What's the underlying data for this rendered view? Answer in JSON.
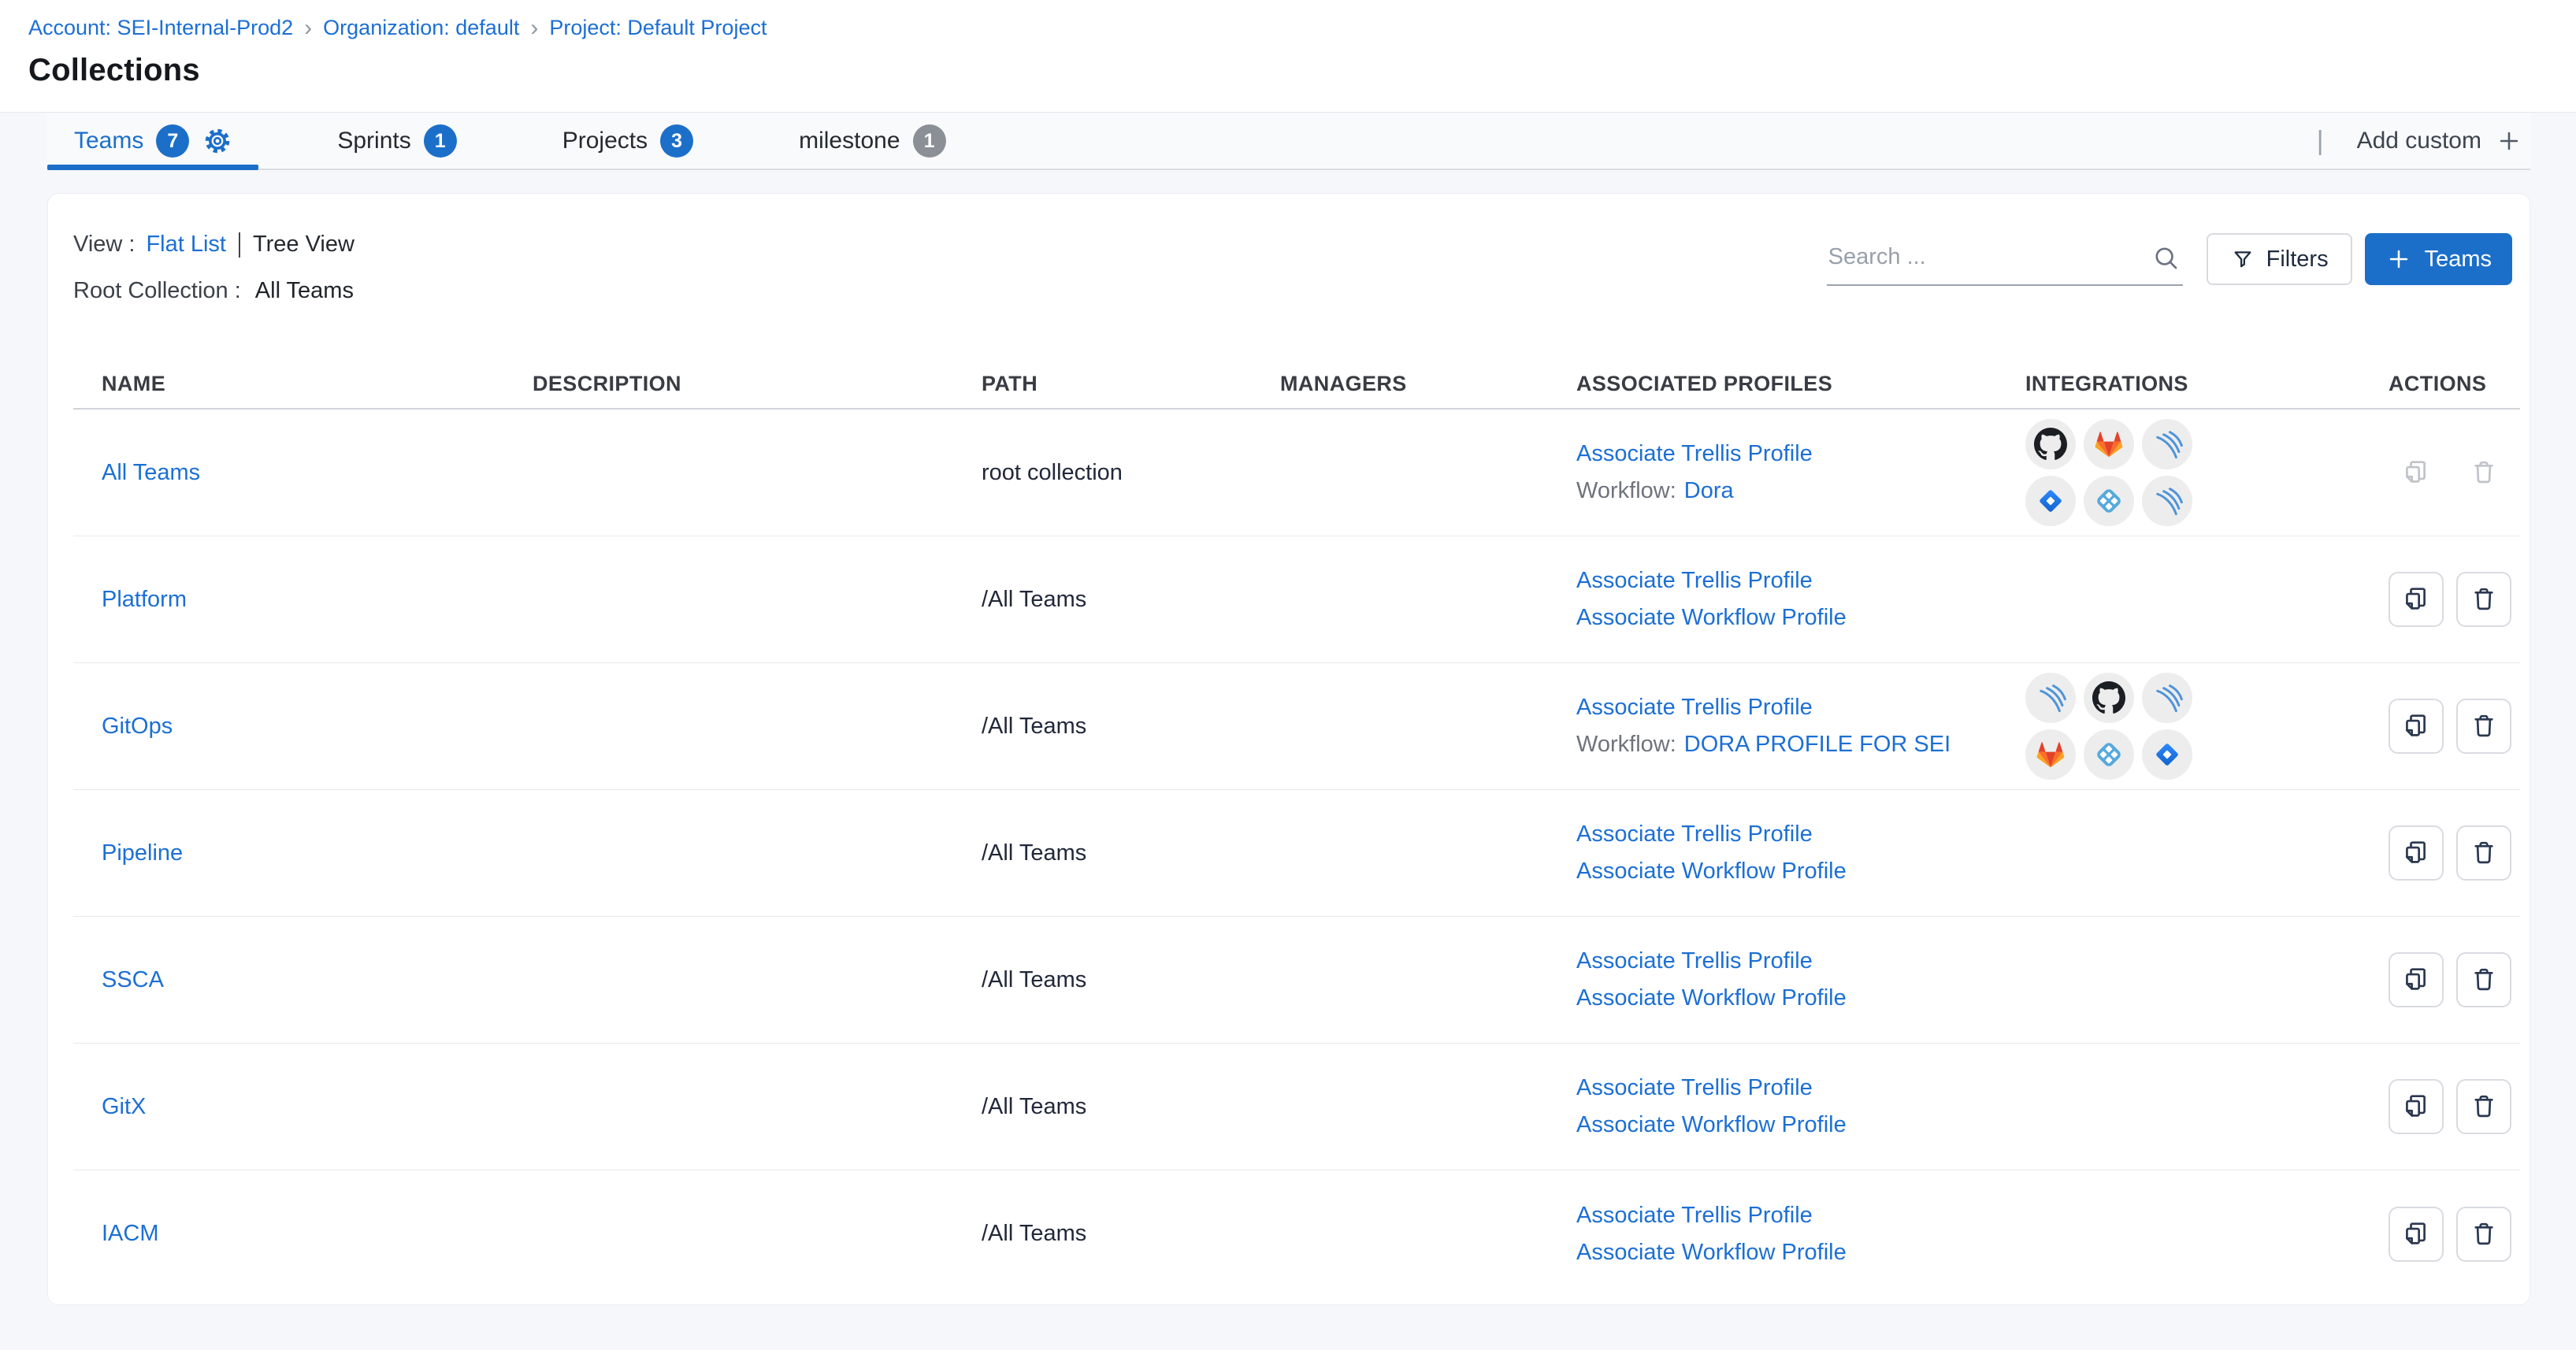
{
  "breadcrumb": {
    "separator": "›",
    "items": [
      "Account: SEI-Internal-Prod2",
      "Organization: default",
      "Project: Default Project"
    ]
  },
  "page": {
    "title": "Collections"
  },
  "tabs": {
    "items": [
      {
        "id": "teams",
        "label": "Teams",
        "count": "7",
        "badge": "blue",
        "active": true,
        "settings_icon": true
      },
      {
        "id": "sprints",
        "label": "Sprints",
        "count": "1",
        "badge": "blue",
        "active": false,
        "settings_icon": false
      },
      {
        "id": "projects",
        "label": "Projects",
        "count": "3",
        "badge": "blue",
        "active": false,
        "settings_icon": false
      },
      {
        "id": "milestone",
        "label": "milestone",
        "count": "1",
        "badge": "gray",
        "active": false,
        "settings_icon": false
      }
    ],
    "add_custom": {
      "label": "Add custom",
      "icon": "plus-icon",
      "divider": "|"
    }
  },
  "toolbar": {
    "view_label": "View :",
    "views": [
      {
        "label": "Flat List",
        "active": true
      },
      {
        "label": "Tree View",
        "active": false
      }
    ],
    "root_collection_label": "Root Collection :",
    "root_collection_value": "All Teams",
    "search": {
      "placeholder": "Search ...",
      "icon": "search-icon"
    },
    "filters_button": {
      "label": "Filters",
      "icon": "filter-icon"
    },
    "add_button": {
      "label": "Teams",
      "icon": "plus-icon"
    }
  },
  "table": {
    "columns": [
      "NAME",
      "DESCRIPTION",
      "PATH",
      "MANAGERS",
      "ASSOCIATED PROFILES",
      "INTEGRATIONS",
      "ACTIONS"
    ],
    "rows": [
      {
        "name": "All Teams",
        "description": "",
        "path": "root collection",
        "managers": "",
        "profiles": {
          "trellis_link": "Associate Trellis Profile",
          "workflow_label": "Workflow:",
          "workflow_link": "Dora"
        },
        "integrations": [
          [
            "github-icon",
            "gitlab-icon",
            "arcs-icon"
          ],
          [
            "jira-icon",
            "diamond-grid-icon",
            "arcs-icon"
          ]
        ],
        "actions_disabled": true
      },
      {
        "name": "Platform",
        "description": "",
        "path": "/All Teams",
        "managers": "",
        "profiles": {
          "trellis_link": "Associate Trellis Profile",
          "workflow_associate_link": "Associate Workflow Profile"
        },
        "integrations": [],
        "actions_disabled": false
      },
      {
        "name": "GitOps",
        "description": "",
        "path": "/All Teams",
        "managers": "",
        "profiles": {
          "trellis_link": "Associate Trellis Profile",
          "workflow_label": "Workflow:",
          "workflow_link": "DORA PROFILE FOR SEI"
        },
        "integrations": [
          [
            "arcs-icon",
            "github-icon",
            "arcs-icon"
          ],
          [
            "gitlab-icon",
            "diamond-grid-icon",
            "jira-icon"
          ]
        ],
        "actions_disabled": false
      },
      {
        "name": "Pipeline",
        "description": "",
        "path": "/All Teams",
        "managers": "",
        "profiles": {
          "trellis_link": "Associate Trellis Profile",
          "workflow_associate_link": "Associate Workflow Profile"
        },
        "integrations": [],
        "actions_disabled": false
      },
      {
        "name": "SSCA",
        "description": "",
        "path": "/All Teams",
        "managers": "",
        "profiles": {
          "trellis_link": "Associate Trellis Profile",
          "workflow_associate_link": "Associate Workflow Profile"
        },
        "integrations": [],
        "actions_disabled": false
      },
      {
        "name": "GitX",
        "description": "",
        "path": "/All Teams",
        "managers": "",
        "profiles": {
          "trellis_link": "Associate Trellis Profile",
          "workflow_associate_link": "Associate Workflow Profile"
        },
        "integrations": [],
        "actions_disabled": false
      },
      {
        "name": "IACM",
        "description": "",
        "path": "/All Teams",
        "managers": "",
        "profiles": {
          "trellis_link": "Associate Trellis Profile",
          "workflow_associate_link": "Associate Workflow Profile"
        },
        "integrations": [],
        "actions_disabled": false
      }
    ]
  },
  "colors": {
    "primary_blue": "#1b6fc9",
    "link_blue": "#1c6fd4",
    "milestone_badge_gray": "#8b9096"
  }
}
